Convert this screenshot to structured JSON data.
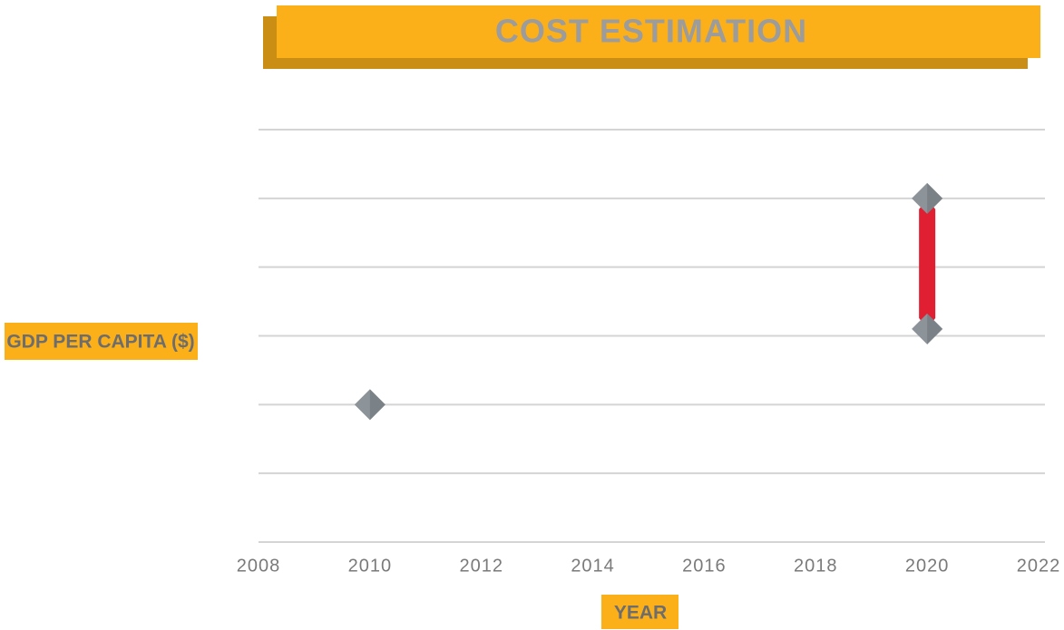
{
  "chart_data": {
    "type": "range-scatter",
    "title": "COST ESTIMATION",
    "xlabel": "YEAR",
    "ylabel": "GDP PER CAPITA ($)",
    "x": [
      2010,
      2020,
      2020
    ],
    "values": [
      2,
      3.1,
      5
    ],
    "color": "#8c9399",
    "range_color": "#e01f32",
    "xlim": [
      2008,
      2022
    ],
    "xticks": [
      2008,
      2010,
      2012,
      2014,
      2016,
      2018,
      2020,
      2022
    ],
    "ylim": [
      0,
      6
    ],
    "yticks": [
      0,
      1,
      2,
      3,
      4,
      5,
      6
    ],
    "grid": true
  }
}
